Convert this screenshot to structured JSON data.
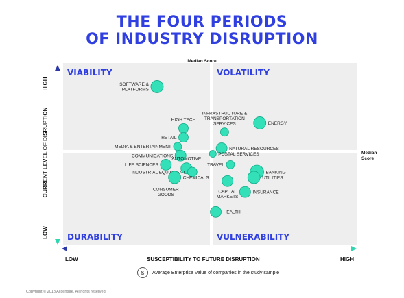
{
  "title_line1": "THE FOUR PERIODS",
  "title_line2": "OF INDUSTRY DISRUPTION",
  "median_top": "Median Score",
  "median_right_1": "Median",
  "median_right_2": "Score",
  "y_axis": {
    "label": "CURRENT LEVEL OF DISRUPTION",
    "high": "HIGH",
    "low": "LOW"
  },
  "x_axis": {
    "label": "SUSCEPTIBILITY TO FUTURE DISRUPTION",
    "low": "LOW",
    "high": "HIGH"
  },
  "legend": {
    "icon": "money-bag-icon",
    "text": "Average Enterprise Value of companies in the study sample"
  },
  "copyright": "Copyright © 2018 Accenture. All rights reserved.",
  "colors": {
    "title": "#2f3fe0",
    "bubble": "#33e0b8",
    "bubble_stroke": "#15a989",
    "quadrant_bg": "#eeeeee",
    "axis_x": "#2c3aa8",
    "axis_y": "#2c3aa8"
  },
  "chart_data": {
    "type": "scatter",
    "quadrants": [
      "VIABILITY",
      "VOLATILITY",
      "DURABILITY",
      "VULNERABILITY"
    ],
    "points": [
      {
        "label": [
          "SOFTWARE &",
          "PLATFORMS"
        ],
        "x": 0.32,
        "y": 0.87,
        "size": 3,
        "side": "left"
      },
      {
        "label": [
          "HIGH TECH"
        ],
        "x": 0.41,
        "y": 0.64,
        "size": 2,
        "side": "above"
      },
      {
        "label": [
          "RETAIL"
        ],
        "x": 0.41,
        "y": 0.59,
        "size": 2,
        "side": "left"
      },
      {
        "label": [
          "MEDIA & ENTERTAINMENT"
        ],
        "x": 0.39,
        "y": 0.54,
        "size": 1.5,
        "side": "left"
      },
      {
        "label": [
          "COMMUNICATIONS"
        ],
        "x": 0.4,
        "y": 0.49,
        "size": 2.5,
        "side": "left"
      },
      {
        "label": [
          "LIFE SCIENCES"
        ],
        "x": 0.35,
        "y": 0.44,
        "size": 2.5,
        "side": "left"
      },
      {
        "label": [
          "AUTOMOTIVE"
        ],
        "x": 0.42,
        "y": 0.42,
        "size": 2.5,
        "side": "above"
      },
      {
        "label": [
          "INDUSTRIAL EQUIPMENT"
        ],
        "x": 0.44,
        "y": 0.4,
        "size": 2,
        "side": "left"
      },
      {
        "label": [
          "CHEMICALS"
        ],
        "x": 0.38,
        "y": 0.37,
        "size": 3,
        "side": "right"
      },
      {
        "label": [
          "CONSUMER",
          "GOODS"
        ],
        "x": 0.35,
        "y": 0.33,
        "size": 0,
        "side": "below"
      },
      {
        "label": [
          "INFRASTRUCTURE &",
          "TRANSPORTATION",
          "SERVICES"
        ],
        "x": 0.55,
        "y": 0.62,
        "size": 1.5,
        "side": "above"
      },
      {
        "label": [
          "ENERGY"
        ],
        "x": 0.67,
        "y": 0.67,
        "size": 3,
        "side": "right"
      },
      {
        "label": [
          "NATURAL RESOURCES"
        ],
        "x": 0.54,
        "y": 0.53,
        "size": 2.5,
        "side": "right"
      },
      {
        "label": [
          "POSTAL SERVICES"
        ],
        "x": 0.51,
        "y": 0.5,
        "size": 1,
        "side": "right"
      },
      {
        "label": [
          "TRAVEL"
        ],
        "x": 0.57,
        "y": 0.44,
        "size": 1.5,
        "side": "left"
      },
      {
        "label": [
          "BANKING"
        ],
        "x": 0.66,
        "y": 0.4,
        "size": 3.5,
        "side": "right"
      },
      {
        "label": [
          "UTILITIES"
        ],
        "x": 0.65,
        "y": 0.37,
        "size": 3,
        "side": "right"
      },
      {
        "label": [
          "CAPITAL",
          "MARKETS"
        ],
        "x": 0.56,
        "y": 0.35,
        "size": 2.5,
        "side": "below"
      },
      {
        "label": [
          "INSURANCE"
        ],
        "x": 0.62,
        "y": 0.29,
        "size": 2.5,
        "side": "right"
      },
      {
        "label": [
          "HEALTH"
        ],
        "x": 0.52,
        "y": 0.18,
        "size": 2.5,
        "side": "right"
      }
    ]
  }
}
